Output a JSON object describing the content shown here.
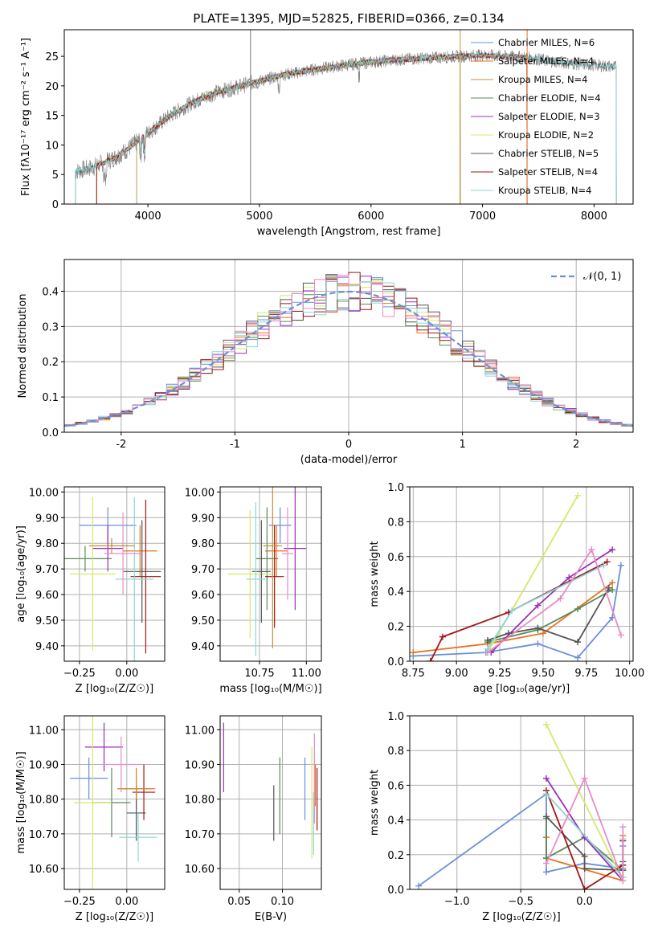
{
  "colors": {
    "Chabrier MILES": "#6a8fd8",
    "Salpeter MILES": "#e8721f",
    "Kroupa MILES": "#c58f33",
    "Chabrier ELODIE": "#5b8a5b",
    "Salpeter ELODIE": "#9b2fb5",
    "Kroupa ELODIE": "#d4e86a",
    "Chabrier STELIB": "#555555",
    "Salpeter STELIB": "#a31515",
    "Kroupa STELIB": "#8ad6d6",
    "extra_pink": "#e68cc8",
    "spectrum_grey": "#808080"
  },
  "chart_data": [
    {
      "id": "spectrum",
      "type": "line",
      "title": "PLATE=1395, MJD=52825, FIBERID=0366, z=0.134",
      "xlabel": "wavelength [Angstrom, rest frame]",
      "ylabel": "Flux [f_λ10^-17 erg cm^-2 s^-1 A^-1]",
      "xlim": [
        3250,
        8350
      ],
      "ylim": [
        0,
        29.5
      ],
      "xticks": [
        4000,
        5000,
        6000,
        7000,
        8000
      ],
      "yticks": [
        0,
        5,
        10,
        15,
        20,
        25
      ],
      "legend_position": "top-right",
      "legend": [
        {
          "label": "Chabrier MILES, N_SSP=6",
          "key": "Chabrier MILES"
        },
        {
          "label": "Salpeter MILES, N_SSP=4",
          "key": "Salpeter MILES"
        },
        {
          "label": "Kroupa MILES, N_SSP=4",
          "key": "Kroupa MILES"
        },
        {
          "label": "Chabrier ELODIE, N_SSP=4",
          "key": "Chabrier ELODIE"
        },
        {
          "label": "Salpeter ELODIE, N_SSP=3",
          "key": "Salpeter ELODIE"
        },
        {
          "label": "Kroupa ELODIE, N_SSP=2",
          "key": "Kroupa ELODIE"
        },
        {
          "label": "Chabrier STELIB, N_SSP=5",
          "key": "Chabrier STELIB"
        },
        {
          "label": "Salpeter STELIB, N_SSP=4",
          "key": "Salpeter STELIB"
        },
        {
          "label": "Kroupa STELIB, N_SSP=4",
          "key": "Kroupa STELIB"
        }
      ],
      "continuum": {
        "x": [
          3350,
          3500,
          3600,
          3700,
          3800,
          3900,
          4000,
          4100,
          4200,
          4400,
          4600,
          4800,
          5000,
          5200,
          5500,
          5800,
          6000,
          6300,
          6600,
          6800,
          7000,
          7200,
          7400,
          7600,
          7800,
          8000,
          8200
        ],
        "y": [
          5.5,
          6.2,
          7.0,
          7.8,
          9.0,
          10.5,
          12.0,
          13.5,
          15.0,
          17.2,
          18.8,
          19.8,
          20.8,
          21.8,
          22.8,
          23.6,
          24.0,
          24.5,
          24.8,
          25.0,
          25.2,
          25.0,
          24.8,
          24.2,
          23.8,
          23.5,
          23.2
        ]
      }
    },
    {
      "id": "residuals",
      "type": "line",
      "xlabel": "(data-model)/error",
      "ylabel": "Normed distribution",
      "xlim": [
        -2.5,
        2.5
      ],
      "ylim": [
        0,
        0.49
      ],
      "xticks": [
        -2,
        -1,
        0,
        1,
        2
      ],
      "yticks": [
        0.0,
        0.1,
        0.2,
        0.3,
        0.4
      ],
      "legend_position": "top-right",
      "legend_label": "N(0,1)",
      "grid": true
    },
    {
      "id": "age-vs-Z",
      "type": "scatter",
      "xlabel": "Z [log10(Z/Z_sun)]",
      "ylabel": "age [log10(age/yr)]",
      "xlim": [
        -0.33,
        0.2
      ],
      "ylim": [
        9.34,
        10.02
      ],
      "xticks": [
        -0.25,
        0.0
      ],
      "xticklabels": [
        "−0.25",
        "0.00"
      ],
      "yticks": [
        9.4,
        9.5,
        9.6,
        9.7,
        9.8,
        9.9,
        10.0
      ],
      "grid": true,
      "points": [
        {
          "key": "Chabrier MILES",
          "x": -0.1,
          "y": 9.87,
          "xerr": 0.15,
          "yerr": 0.07
        },
        {
          "key": "Salpeter MILES",
          "x": 0.07,
          "y": 9.77,
          "xerr": 0.09,
          "yerr": 0.1
        },
        {
          "key": "Chabrier ELODIE",
          "x": -0.22,
          "y": 9.74,
          "xerr": 0.14,
          "yerr": 0.05
        },
        {
          "key": "Salpeter ELODIE",
          "x": -0.1,
          "y": 9.78,
          "xerr": 0.08,
          "yerr": 0.09
        },
        {
          "key": "Kroupa ELODIE",
          "x": -0.18,
          "y": 9.68,
          "xerr": 0.12,
          "yerr": 0.3
        },
        {
          "key": "Chabrier STELIB",
          "x": 0.08,
          "y": 9.69,
          "xerr": 0.1,
          "yerr": 0.2
        },
        {
          "key": "Salpeter STELIB",
          "x": 0.1,
          "y": 9.67,
          "xerr": 0.08,
          "yerr": 0.3
        },
        {
          "key": "Kroupa STELIB",
          "x": 0.04,
          "y": 9.66,
          "xerr": 0.1,
          "yerr": 0.32
        },
        {
          "key": "extra_pink",
          "x": -0.02,
          "y": 9.76,
          "xerr": 0.1,
          "yerr": 0.16
        },
        {
          "key": "Kroupa MILES",
          "x": -0.08,
          "y": 9.79,
          "xerr": 0.12,
          "yerr": 0.03
        }
      ]
    },
    {
      "id": "age-vs-mass",
      "type": "scatter",
      "xlabel": "mass [log10(M/M_sun)]",
      "xlim": [
        10.54,
        11.08
      ],
      "ylim": [
        9.34,
        10.02
      ],
      "xticks": [
        10.75,
        11.0
      ],
      "xticklabels": [
        "10.75",
        "11.00"
      ],
      "yticks": [
        9.4,
        9.5,
        9.6,
        9.7,
        9.8,
        9.9,
        10.0
      ],
      "grid": true,
      "points": [
        {
          "key": "Chabrier MILES",
          "x": 10.86,
          "y": 9.87,
          "xerr": 0.06,
          "yerr": 0.07
        },
        {
          "key": "Salpeter MILES",
          "x": 10.84,
          "y": 9.77,
          "xerr": 0.06,
          "yerr": 0.1
        },
        {
          "key": "Chabrier ELODIE",
          "x": 10.79,
          "y": 9.74,
          "xerr": 0.06,
          "yerr": 0.2
        },
        {
          "key": "Salpeter ELODIE",
          "x": 10.94,
          "y": 9.78,
          "xerr": 0.06,
          "yerr": 0.24
        },
        {
          "key": "Kroupa ELODIE",
          "x": 10.7,
          "y": 9.68,
          "xerr": 0.12,
          "yerr": 0.25
        },
        {
          "key": "Chabrier STELIB",
          "x": 10.76,
          "y": 9.69,
          "xerr": 0.05,
          "yerr": 0.2
        },
        {
          "key": "Salpeter STELIB",
          "x": 10.83,
          "y": 9.67,
          "xerr": 0.05,
          "yerr": 0.2
        },
        {
          "key": "Kroupa STELIB",
          "x": 10.73,
          "y": 9.66,
          "xerr": 0.05,
          "yerr": 0.3
        },
        {
          "key": "extra_pink",
          "x": 10.9,
          "y": 9.76,
          "xerr": 0.03,
          "yerr": 0.18
        },
        {
          "key": "Kroupa MILES",
          "x": 10.82,
          "y": 9.79,
          "xerr": 0.05,
          "yerr": 0.4
        }
      ]
    },
    {
      "id": "massweight-vs-age",
      "type": "line",
      "xlabel": "age [log10(age/yr)]",
      "ylabel": "mass weight",
      "xlim": [
        8.73,
        10.02
      ],
      "ylim": [
        0,
        1.0
      ],
      "xticks": [
        8.75,
        9.0,
        9.25,
        9.5,
        9.75,
        10.0
      ],
      "xticklabels": [
        "8.75",
        "9.00",
        "9.25",
        "9.50",
        "9.75",
        "10.00"
      ],
      "yticks": [
        0.0,
        0.2,
        0.4,
        0.6,
        0.8,
        1.0
      ],
      "grid": true,
      "series": [
        {
          "key": "Chabrier MILES",
          "x": [
            8.75,
            9.17,
            9.47,
            9.7,
            9.9,
            9.95
          ],
          "y": [
            0.03,
            0.05,
            0.1,
            0.02,
            0.25,
            0.55
          ]
        },
        {
          "key": "Salpeter MILES",
          "x": [
            8.75,
            9.18,
            9.5,
            9.9
          ],
          "y": [
            0.05,
            0.1,
            0.16,
            0.45
          ]
        },
        {
          "key": "Chabrier ELODIE",
          "x": [
            9.18,
            9.47,
            9.7,
            9.9
          ],
          "y": [
            0.11,
            0.18,
            0.3,
            0.41
          ]
        },
        {
          "key": "Salpeter ELODIE",
          "x": [
            9.2,
            9.47,
            9.65,
            9.9
          ],
          "y": [
            0.05,
            0.32,
            0.48,
            0.64
          ]
        },
        {
          "key": "Kroupa ELODIE",
          "x": [
            9.18,
            9.7
          ],
          "y": [
            0.05,
            0.95
          ]
        },
        {
          "key": "Chabrier STELIB",
          "x": [
            9.18,
            9.3,
            9.47,
            9.7,
            9.88
          ],
          "y": [
            0.12,
            0.16,
            0.19,
            0.11,
            0.42
          ]
        },
        {
          "key": "Salpeter STELIB",
          "x": [
            8.85,
            8.92,
            9.3,
            9.87
          ],
          "y": [
            0.0,
            0.14,
            0.28,
            0.57
          ]
        },
        {
          "key": "Kroupa STELIB",
          "x": [
            9.18,
            9.32,
            9.85
          ],
          "y": [
            0.07,
            0.29,
            0.55
          ]
        },
        {
          "key": "extra_pink",
          "x": [
            9.18,
            9.6,
            9.78,
            9.95
          ],
          "y": [
            0.05,
            0.36,
            0.64,
            0.15
          ]
        }
      ]
    },
    {
      "id": "mass-vs-Z",
      "type": "scatter",
      "xlabel": "Z [log10(Z/Z_sun)]",
      "ylabel": "mass [log10(M/M_sun)]",
      "xlim": [
        -0.33,
        0.2
      ],
      "ylim": [
        10.54,
        11.04
      ],
      "xticks": [
        -0.25,
        0.0
      ],
      "xticklabels": [
        "−0.25",
        "0.00"
      ],
      "yticks": [
        10.6,
        10.7,
        10.8,
        10.9,
        11.0
      ],
      "grid": true,
      "points": [
        {
          "key": "Chabrier MILES",
          "x": -0.2,
          "y": 10.86,
          "xerr": 0.1,
          "yerr": 0.06
        },
        {
          "key": "Salpeter MILES",
          "x": 0.05,
          "y": 10.83,
          "xerr": 0.1,
          "yerr": 0.06
        },
        {
          "key": "Chabrier ELODIE",
          "x": -0.08,
          "y": 10.79,
          "xerr": 0.1,
          "yerr": 0.1
        },
        {
          "key": "Salpeter ELODIE",
          "x": -0.12,
          "y": 10.95,
          "xerr": 0.1,
          "yerr": 0.07
        },
        {
          "key": "Kroupa ELODIE",
          "x": -0.18,
          "y": 10.79,
          "xerr": 0.1,
          "yerr": 0.25
        },
        {
          "key": "Chabrier STELIB",
          "x": 0.05,
          "y": 10.76,
          "xerr": 0.05,
          "yerr": 0.08
        },
        {
          "key": "Salpeter STELIB",
          "x": 0.09,
          "y": 10.82,
          "xerr": 0.06,
          "yerr": 0.08
        },
        {
          "key": "Kroupa STELIB",
          "x": 0.06,
          "y": 10.69,
          "xerr": 0.1,
          "yerr": 0.07
        },
        {
          "key": "extra_pink",
          "x": -0.03,
          "y": 10.9,
          "xerr": 0.1,
          "yerr": 0.08
        },
        {
          "key": "Kroupa MILES",
          "x": 0.05,
          "y": 10.83,
          "xerr": 0.08,
          "yerr": 0.03
        }
      ]
    },
    {
      "id": "mass-vs-EBV",
      "type": "scatter",
      "xlabel": "E(B-V)",
      "xlim": [
        0.028,
        0.145
      ],
      "ylim": [
        10.54,
        11.04
      ],
      "xticks": [
        0.05,
        0.1
      ],
      "xticklabels": [
        "0.05",
        "0.10"
      ],
      "yticks": [
        10.6,
        10.7,
        10.8,
        10.9,
        11.0
      ],
      "grid": true,
      "points": [
        {
          "key": "Salpeter ELODIE",
          "x": 0.032,
          "y": 10.92,
          "yerr": 0.1
        },
        {
          "key": "Chabrier STELIB",
          "x": 0.09,
          "y": 10.76,
          "yerr": 0.08
        },
        {
          "key": "Chabrier ELODIE",
          "x": 0.097,
          "y": 10.81,
          "yerr": 0.11
        },
        {
          "key": "Chabrier MILES",
          "x": 0.126,
          "y": 10.83,
          "yerr": 0.09
        },
        {
          "key": "Kroupa ELODIE",
          "x": 0.134,
          "y": 10.79,
          "yerr": 0.16
        },
        {
          "key": "Kroupa STELIB",
          "x": 0.136,
          "y": 10.73,
          "yerr": 0.09
        },
        {
          "key": "extra_pink",
          "x": 0.137,
          "y": 10.86,
          "yerr": 0.13
        },
        {
          "key": "Salpeter STELIB",
          "x": 0.14,
          "y": 10.8,
          "yerr": 0.09
        },
        {
          "key": "Salpeter MILES",
          "x": 0.138,
          "y": 10.84,
          "yerr": 0.06
        }
      ]
    },
    {
      "id": "massweight-vs-Z",
      "type": "line",
      "xlabel": "Z [log10(Z/Z_sun)]",
      "ylabel": "mass weight",
      "xlim": [
        -1.37,
        0.38
      ],
      "ylim": [
        0,
        1.0
      ],
      "xticks": [
        -1.0,
        -0.5,
        0.0
      ],
      "xticklabels": [
        "−1.0",
        "−0.5",
        "0.0"
      ],
      "yticks": [
        0.0,
        0.2,
        0.4,
        0.6,
        0.8,
        1.0
      ],
      "grid": true,
      "series": [
        {
          "key": "Chabrier MILES",
          "x": [
            -1.3,
            -0.3,
            -0.3,
            0.0,
            0.3,
            0.3
          ],
          "y": [
            0.02,
            0.55,
            0.1,
            0.15,
            0.12,
            0.25
          ]
        },
        {
          "key": "Salpeter MILES",
          "x": [
            -0.3,
            -0.3,
            0.3,
            0.3
          ],
          "y": [
            0.3,
            0.18,
            0.05,
            0.31
          ]
        },
        {
          "key": "Chabrier ELODIE",
          "x": [
            -0.3,
            -0.3,
            0.0,
            0.3
          ],
          "y": [
            0.41,
            0.18,
            0.3,
            0.11
          ]
        },
        {
          "key": "Salpeter ELODIE",
          "x": [
            -0.3,
            0.0,
            0.3
          ],
          "y": [
            0.64,
            0.3,
            0.05
          ]
        },
        {
          "key": "Kroupa ELODIE",
          "x": [
            -0.3,
            0.3
          ],
          "y": [
            0.95,
            0.05
          ]
        },
        {
          "key": "Chabrier STELIB",
          "x": [
            -0.3,
            0.0,
            0.0,
            0.3,
            0.3
          ],
          "y": [
            0.42,
            0.19,
            0.12,
            0.11,
            0.16
          ]
        },
        {
          "key": "Salpeter STELIB",
          "x": [
            -0.3,
            0.0,
            0.3,
            0.3
          ],
          "y": [
            0.57,
            0.0,
            0.14,
            0.28
          ]
        },
        {
          "key": "Kroupa STELIB",
          "x": [
            -0.3,
            0.3,
            0.3
          ],
          "y": [
            0.55,
            0.07,
            0.29
          ]
        },
        {
          "key": "extra_pink",
          "x": [
            -0.3,
            0.0,
            0.3,
            0.3
          ],
          "y": [
            0.15,
            0.64,
            0.05,
            0.36
          ]
        }
      ]
    }
  ]
}
